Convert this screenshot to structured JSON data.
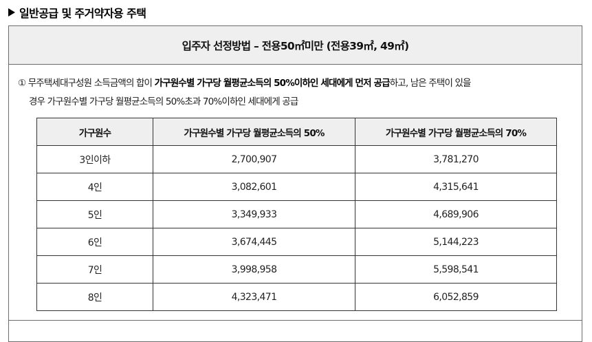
{
  "section_title": "일반공급 및 주거약자용 주택",
  "box": {
    "header": "입주자 선정방법 – 전용50㎡미만 (전용39㎡, 49㎡)",
    "desc": {
      "line1_prefix": "① 무주택세대구성원 소득금액의 합이 ",
      "line1_bold": "가구원수별 가구당 월평균소득의 50%이하인 세대에게 먼저 공급",
      "line1_suffix": "하고, 남은 주택이 있을",
      "line2": "경우 가구원수별 가구당 월평균소득의 50%초과 70%이하인 세대에게 공급"
    }
  },
  "table": {
    "headers": [
      "가구원수",
      "가구원수별 가구당 월평균소득의 50%",
      "가구원수별 가구당 월평균소득의 70%"
    ],
    "rows": [
      [
        "3인이하",
        "2,700,907",
        "3,781,270"
      ],
      [
        "4인",
        "3,082,601",
        "4,315,641"
      ],
      [
        "5인",
        "3,349,933",
        "4,689,906"
      ],
      [
        "6인",
        "3,674,445",
        "5,144,223"
      ],
      [
        "7인",
        "3,998,958",
        "5,598,541"
      ],
      [
        "8인",
        "4,323,471",
        "6,052,859"
      ]
    ]
  }
}
